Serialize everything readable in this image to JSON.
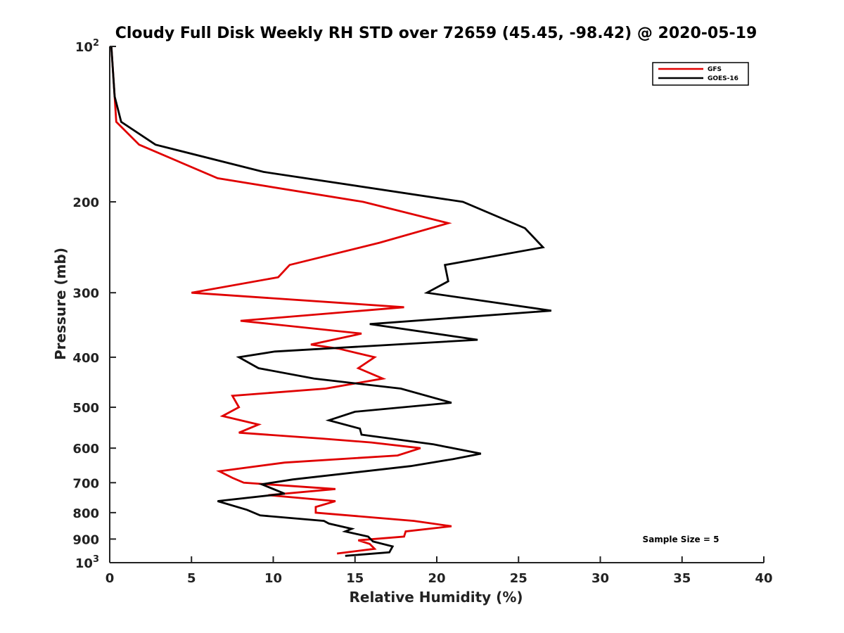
{
  "colors": {
    "gfs": "#e00000",
    "goes": "#000000",
    "axis": "#222222"
  },
  "chart_data": {
    "type": "line",
    "title": "Cloudy Full Disk Weekly RH STD over 72659 (45.45, -98.42) @ 2020-05-19",
    "xlabel": "Relative Humidity (%)",
    "ylabel": "Pressure (mb)",
    "xlim": [
      0,
      40
    ],
    "ylim": [
      100,
      1000
    ],
    "yscale": "log",
    "yreversed": true,
    "grid": false,
    "legend_position": "top-right",
    "xticks": [
      0,
      5,
      10,
      15,
      20,
      25,
      30,
      35,
      40
    ],
    "xtick_labels": [
      "0",
      "5",
      "10",
      "15",
      "20",
      "25",
      "30",
      "35",
      "40"
    ],
    "yticks": [
      100,
      200,
      300,
      400,
      500,
      600,
      700,
      800,
      900,
      1000
    ],
    "ytick_labels": [
      {
        "base": "10",
        "exp": "2"
      },
      {
        "base": "200",
        "exp": ""
      },
      {
        "base": "300",
        "exp": ""
      },
      {
        "base": "400",
        "exp": ""
      },
      {
        "base": "500",
        "exp": ""
      },
      {
        "base": "600",
        "exp": ""
      },
      {
        "base": "700",
        "exp": ""
      },
      {
        "base": "800",
        "exp": ""
      },
      {
        "base": "900",
        "exp": ""
      },
      {
        "base": "10",
        "exp": "3"
      }
    ],
    "annotation": "Sample Size = 5",
    "series": [
      {
        "name": "GFS",
        "color": "#e00000",
        "points": [
          [
            0.1,
            100
          ],
          [
            0.3,
            125
          ],
          [
            0.4,
            140
          ],
          [
            1.8,
            155
          ],
          [
            6.6,
            180
          ],
          [
            15.5,
            200
          ],
          [
            20.7,
            220
          ],
          [
            16.5,
            240
          ],
          [
            11.0,
            265
          ],
          [
            10.3,
            280
          ],
          [
            5.0,
            300
          ],
          [
            18.0,
            320
          ],
          [
            8.0,
            340
          ],
          [
            15.4,
            360
          ],
          [
            12.3,
            378
          ],
          [
            14.0,
            385
          ],
          [
            16.2,
            400
          ],
          [
            15.2,
            420
          ],
          [
            16.7,
            440
          ],
          [
            13.2,
            460
          ],
          [
            7.5,
            475
          ],
          [
            7.9,
            500
          ],
          [
            6.9,
            520
          ],
          [
            9.1,
            540
          ],
          [
            7.9,
            560
          ],
          [
            13.0,
            575
          ],
          [
            16.0,
            585
          ],
          [
            19.0,
            600
          ],
          [
            17.6,
            620
          ],
          [
            10.7,
            640
          ],
          [
            6.7,
            665
          ],
          [
            7.5,
            685
          ],
          [
            8.2,
            700
          ],
          [
            13.8,
            720
          ],
          [
            9.7,
            740
          ],
          [
            13.8,
            760
          ],
          [
            12.6,
            780
          ],
          [
            12.6,
            800
          ],
          [
            18.6,
            830
          ],
          [
            20.9,
            850
          ],
          [
            18.1,
            870
          ],
          [
            18.0,
            890
          ],
          [
            15.2,
            905
          ],
          [
            15.9,
            920
          ],
          [
            16.2,
            940
          ],
          [
            13.9,
            960
          ]
        ]
      },
      {
        "name": "GOES-16",
        "color": "#000000",
        "points": [
          [
            0.1,
            100
          ],
          [
            0.3,
            125
          ],
          [
            0.7,
            140
          ],
          [
            2.8,
            155
          ],
          [
            9.4,
            175
          ],
          [
            21.6,
            200
          ],
          [
            25.4,
            225
          ],
          [
            26.5,
            245
          ],
          [
            20.5,
            265
          ],
          [
            20.7,
            285
          ],
          [
            19.4,
            300
          ],
          [
            27.0,
            325
          ],
          [
            15.9,
            345
          ],
          [
            22.5,
            370
          ],
          [
            10.1,
            390
          ],
          [
            7.9,
            400
          ],
          [
            9.1,
            420
          ],
          [
            12.5,
            440
          ],
          [
            17.8,
            460
          ],
          [
            20.9,
            490
          ],
          [
            15.0,
            510
          ],
          [
            13.4,
            530
          ],
          [
            15.3,
            550
          ],
          [
            15.4,
            565
          ],
          [
            19.8,
            590
          ],
          [
            22.7,
            615
          ],
          [
            21.0,
            630
          ],
          [
            18.4,
            650
          ],
          [
            11.2,
            690
          ],
          [
            9.3,
            705
          ],
          [
            10.7,
            735
          ],
          [
            6.6,
            760
          ],
          [
            8.4,
            790
          ],
          [
            9.2,
            810
          ],
          [
            13.1,
            830
          ],
          [
            13.4,
            840
          ],
          [
            14.8,
            860
          ],
          [
            14.4,
            870
          ],
          [
            15.8,
            890
          ],
          [
            16.1,
            910
          ],
          [
            17.3,
            930
          ],
          [
            17.1,
            955
          ],
          [
            14.4,
            970
          ]
        ]
      }
    ]
  }
}
